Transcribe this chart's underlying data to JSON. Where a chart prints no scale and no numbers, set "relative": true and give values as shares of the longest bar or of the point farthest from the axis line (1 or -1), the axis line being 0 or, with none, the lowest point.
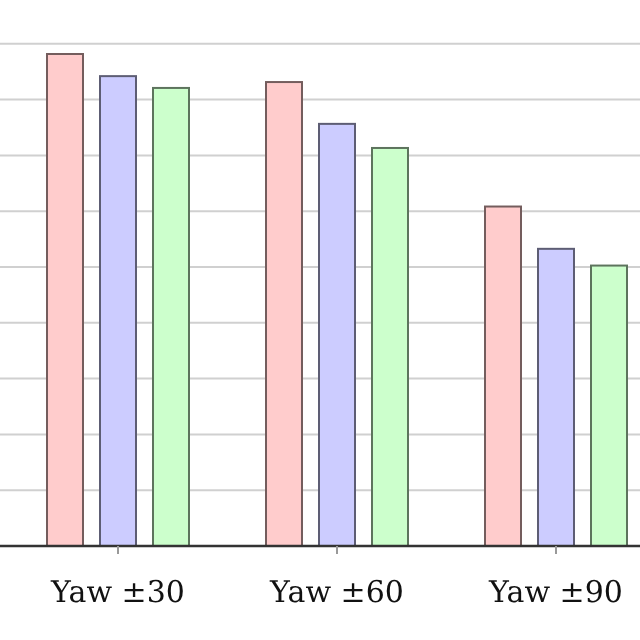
{
  "chart_data": {
    "type": "bar",
    "relative": true,
    "grid": "y",
    "categories": [
      "Yaw ±30",
      "Yaw ±60",
      "Yaw ±90"
    ],
    "series": [
      {
        "color": "#ffcccc",
        "values": [
          1,
          0.943,
          0.69
        ]
      },
      {
        "color": "#ccccff",
        "values": [
          0.955,
          0.858,
          0.604
        ]
      },
      {
        "color": "#ccffcc",
        "values": [
          0.931,
          0.809,
          0.57
        ]
      }
    ]
  }
}
